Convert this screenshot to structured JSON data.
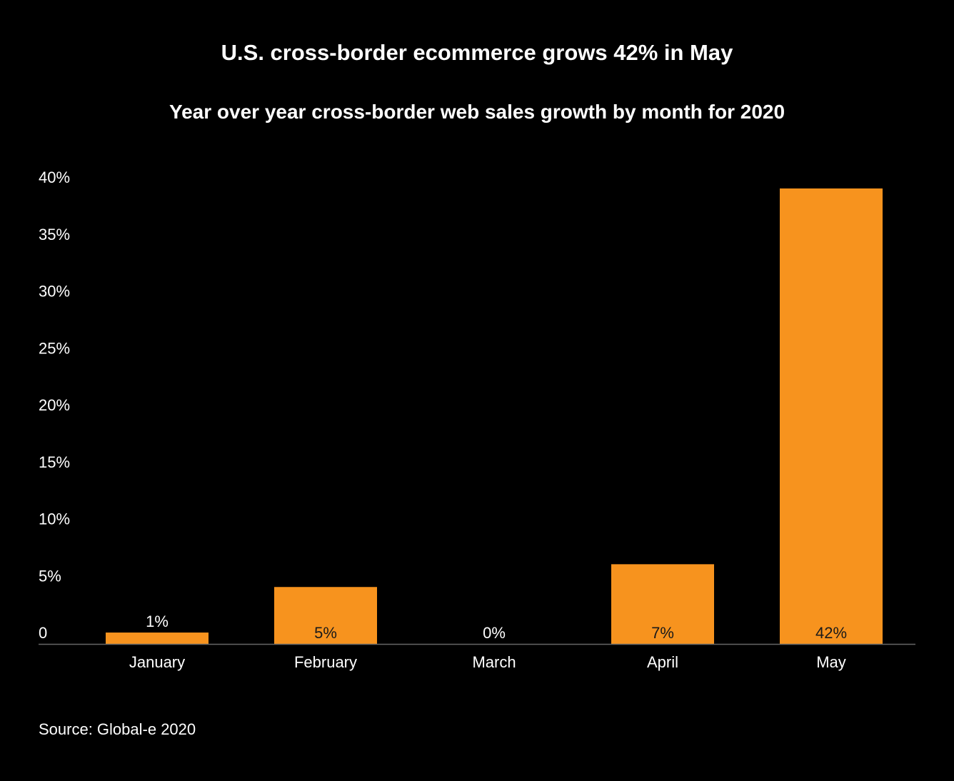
{
  "chart_data": {
    "type": "bar",
    "title": "U.S. cross-border ecommerce grows 42% in May",
    "subtitle": "Year over year cross-border web sales growth by month for 2020",
    "categories": [
      "January",
      "February",
      "March",
      "April",
      "May"
    ],
    "values": [
      1,
      5,
      0,
      7,
      42
    ],
    "data_labels": [
      "1%",
      "5%",
      "0%",
      "7%",
      "42%"
    ],
    "ylim": [
      0,
      40
    ],
    "yticks": [
      0,
      5,
      10,
      15,
      20,
      25,
      30,
      35,
      40
    ],
    "ytick_labels": [
      "0",
      "5%",
      "10%",
      "15%",
      "20%",
      "25%",
      "30%",
      "35%",
      "40%"
    ],
    "xlabel": "",
    "ylabel": "",
    "grid": false,
    "legend": "none",
    "bar_color": "#F7931E",
    "label_color_inside": "#1a1a1a",
    "label_color_outside": "#ffffff",
    "background": "#000000",
    "source": "Source: Global-e 2020"
  }
}
